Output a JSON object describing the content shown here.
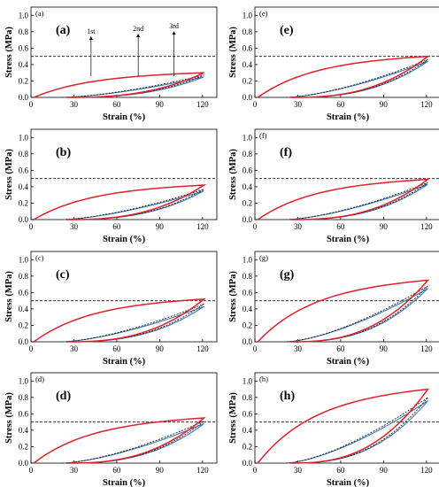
{
  "chart_data": [
    {
      "type": "line",
      "small_label": "(a)",
      "panel_label": "(a)",
      "xlabel": "Strain (%)",
      "ylabel": "Stress (MPa)",
      "xlim": [
        0,
        130
      ],
      "ylim": [
        0,
        1.1
      ],
      "xticks": [
        "0",
        "30",
        "60",
        "90",
        "120"
      ],
      "yticks": [
        "0.0",
        "0.2",
        "0.4",
        "0.6",
        "0.8",
        "1.0"
      ],
      "reference_line": 0.5,
      "peak_stress": [
        0.3,
        0.27,
        0.25
      ],
      "annotations": [
        {
          "text": "1st",
          "x": 42
        },
        {
          "text": "2nd",
          "x": 75
        },
        {
          "text": "3rd",
          "x": 100
        }
      ]
    },
    {
      "type": "line",
      "small_label": "",
      "panel_label": "(b)",
      "xlabel": "Strain (%)",
      "ylabel": "Stress (MPa)",
      "xlim": [
        0,
        130
      ],
      "ylim": [
        0,
        1.1
      ],
      "xticks": [
        "0",
        "30",
        "60",
        "90",
        "120"
      ],
      "yticks": [
        "0.0",
        "0.2",
        "0.4",
        "0.6",
        "0.8",
        "1.0"
      ],
      "reference_line": 0.5,
      "peak_stress": [
        0.42,
        0.37,
        0.35
      ]
    },
    {
      "type": "line",
      "small_label": "(c)",
      "panel_label": "(c)",
      "xlabel": "Strain (%)",
      "ylabel": "Stress (MPa)",
      "xlim": [
        0,
        130
      ],
      "ylim": [
        0,
        1.1
      ],
      "xticks": [
        "0",
        "30",
        "60",
        "90",
        "120"
      ],
      "yticks": [
        "0.0",
        "0.2",
        "0.4",
        "0.6",
        "0.8",
        "1.0"
      ],
      "reference_line": 0.5,
      "peak_stress": [
        0.52,
        0.46,
        0.43
      ]
    },
    {
      "type": "line",
      "small_label": "(d)",
      "panel_label": "(d)",
      "xlabel": "Strain (%)",
      "ylabel": "Stress (MPa)",
      "xlim": [
        0,
        130
      ],
      "ylim": [
        0,
        1.1
      ],
      "xticks": [
        "0",
        "30",
        "60",
        "90",
        "120"
      ],
      "yticks": [
        "0.0",
        "0.2",
        "0.4",
        "0.6",
        "0.8",
        "1.0"
      ],
      "reference_line": 0.5,
      "peak_stress": [
        0.55,
        0.51,
        0.48
      ]
    },
    {
      "type": "line",
      "small_label": "(e)",
      "panel_label": "(e)",
      "xlabel": "Strain (%)",
      "ylabel": "Stress (MPa)",
      "xlim": [
        0,
        130
      ],
      "ylim": [
        0,
        1.1
      ],
      "xticks": [
        "0",
        "30",
        "60",
        "90",
        "120"
      ],
      "yticks": [
        "0.0",
        "0.2",
        "0.4",
        "0.6",
        "0.8",
        "1.0"
      ],
      "reference_line": 0.5,
      "peak_stress": [
        0.5,
        0.46,
        0.44
      ]
    },
    {
      "type": "line",
      "small_label": "(f)",
      "panel_label": "(f)",
      "xlabel": "Strain (%)",
      "ylabel": "Stress (MPa)",
      "xlim": [
        0,
        130
      ],
      "ylim": [
        0,
        1.1
      ],
      "xticks": [
        "0",
        "30",
        "60",
        "90",
        "120"
      ],
      "yticks": [
        "0.0",
        "0.2",
        "0.4",
        "0.6",
        "0.8",
        "1.0"
      ],
      "reference_line": 0.5,
      "peak_stress": [
        0.49,
        0.45,
        0.43
      ]
    },
    {
      "type": "line",
      "small_label": "(g)",
      "panel_label": "(g)",
      "xlabel": "Strain (%)",
      "ylabel": "Stress (MPa)",
      "xlim": [
        0,
        130
      ],
      "ylim": [
        0,
        1.1
      ],
      "xticks": [
        "0",
        "30",
        "60",
        "90",
        "120"
      ],
      "yticks": [
        "0.0",
        "0.2",
        "0.4",
        "0.6",
        "0.8",
        "1.0"
      ],
      "reference_line": 0.5,
      "peak_stress": [
        0.75,
        0.68,
        0.65
      ]
    },
    {
      "type": "line",
      "small_label": "(h)",
      "panel_label": "(h)",
      "xlabel": "Strain (%)",
      "ylabel": "Stress (MPa)",
      "xlim": [
        0,
        130
      ],
      "ylim": [
        0,
        1.1
      ],
      "xticks": [
        "0",
        "30",
        "60",
        "90",
        "120"
      ],
      "yticks": [
        "0.0",
        "0.2",
        "0.4",
        "0.6",
        "0.8",
        "1.0"
      ],
      "reference_line": 0.5,
      "peak_stress": [
        0.9,
        0.8,
        0.76
      ]
    }
  ],
  "colors": {
    "first_cycle": "#e0202a",
    "second_cycle": "#1a1a1a",
    "third_cycle": "#2e6fb5",
    "reference_line": "#333333",
    "axis": "#000000"
  }
}
